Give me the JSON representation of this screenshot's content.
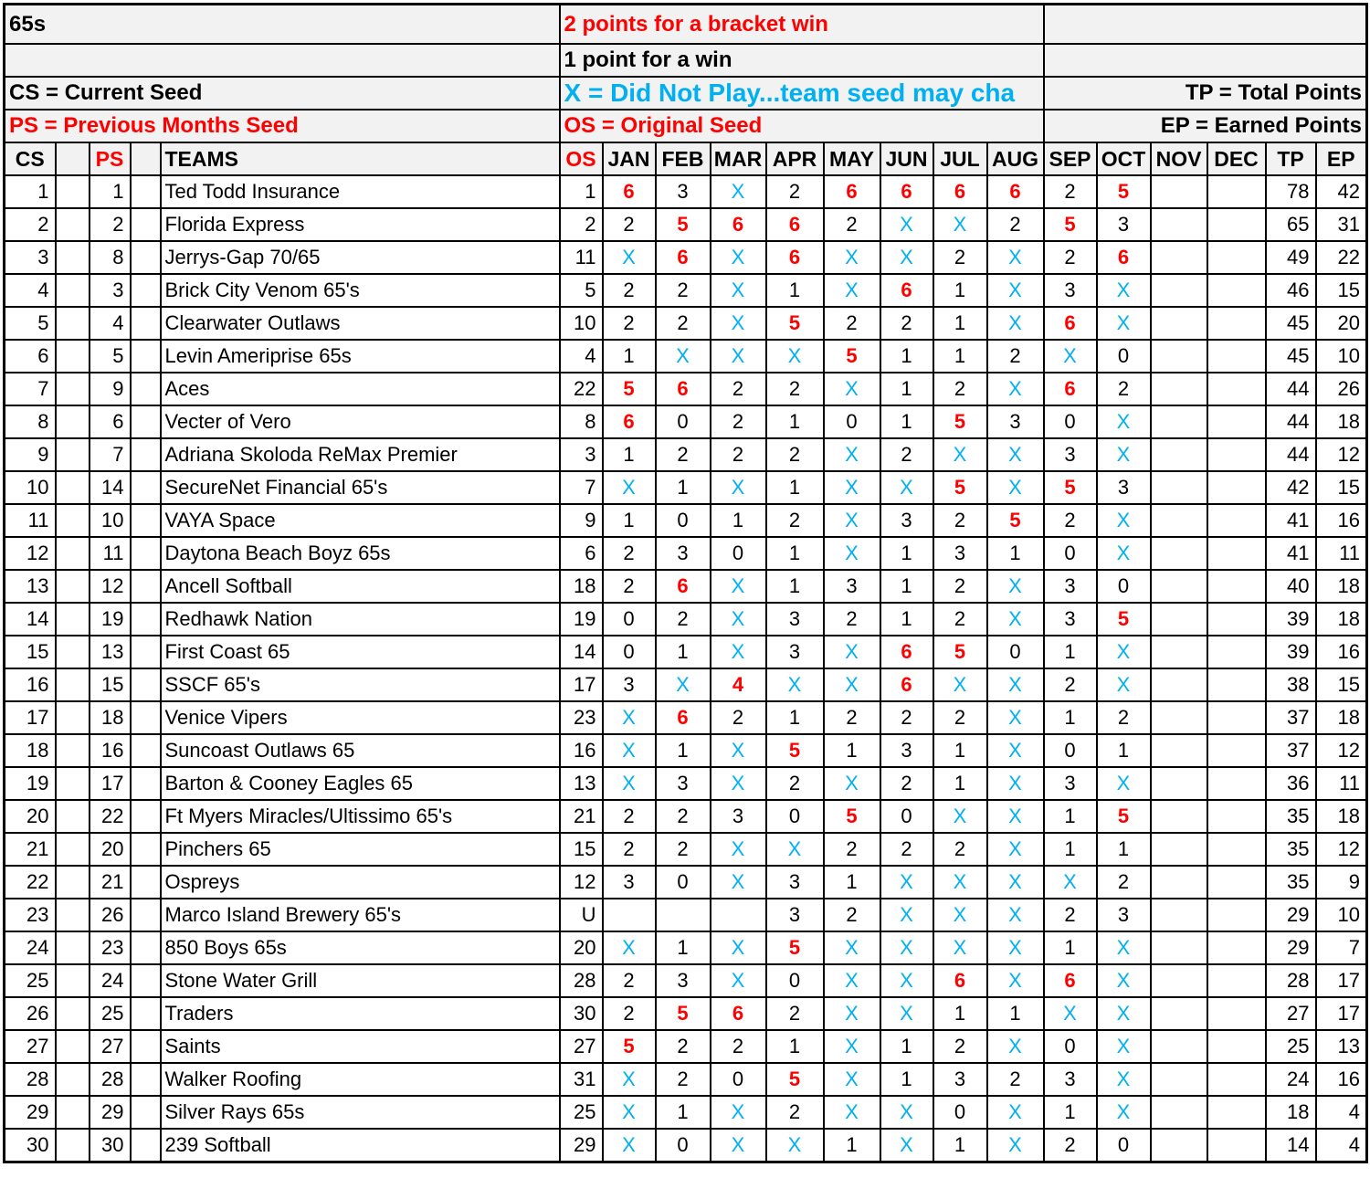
{
  "info": {
    "title": "65s",
    "bracket_rule": "2 points for a bracket win",
    "win_rule": "1 point for a win",
    "cs_legend": "CS = Current Seed",
    "x_legend": "X = Did Not Play...team seed may cha",
    "tp_legend": "TP = Total Points",
    "ps_legend": "PS = Previous Months Seed",
    "os_legend": "OS = Original Seed",
    "ep_legend": "EP = Earned Points"
  },
  "colors": {
    "highlight": "#ff0000",
    "did_not_play": "#00b0f0",
    "header_bg": "#f2f2f2"
  },
  "headers": {
    "cs": "CS",
    "ps": "PS",
    "teams": "TEAMS",
    "os": "OS",
    "months": [
      "JAN",
      "FEB",
      "MAR",
      "APR",
      "MAY",
      "JUN",
      "JUL",
      "AUG",
      "SEP",
      "OCT",
      "NOV",
      "DEC"
    ],
    "tp": "TP",
    "ep": "EP"
  },
  "rows": [
    {
      "cs": "1",
      "ps": "1",
      "team": "Ted Todd Insurance",
      "os": "1",
      "m": [
        "6",
        "3",
        "X",
        "2",
        "6",
        "6",
        "6",
        "6",
        "2",
        "5",
        "",
        ""
      ],
      "tp": "78",
      "ep": "42"
    },
    {
      "cs": "2",
      "ps": "2",
      "team": "Florida Express",
      "os": "2",
      "m": [
        "2",
        "5",
        "6",
        "6",
        "2",
        "X",
        "X",
        "2",
        "5",
        "3",
        "",
        ""
      ],
      "tp": "65",
      "ep": "31"
    },
    {
      "cs": "3",
      "ps": "8",
      "team": "Jerrys-Gap 70/65",
      "os": "11",
      "m": [
        "X",
        "6",
        "X",
        "6",
        "X",
        "X",
        "2",
        "X",
        "2",
        "6",
        "",
        ""
      ],
      "tp": "49",
      "ep": "22"
    },
    {
      "cs": "4",
      "ps": "3",
      "team": "Brick City Venom 65's",
      "os": "5",
      "m": [
        "2",
        "2",
        "X",
        "1",
        "X",
        "6",
        "1",
        "X",
        "3",
        "X",
        "",
        ""
      ],
      "tp": "46",
      "ep": "15"
    },
    {
      "cs": "5",
      "ps": "4",
      "team": "Clearwater Outlaws",
      "os": "10",
      "m": [
        "2",
        "2",
        "X",
        "5",
        "2",
        "2",
        "1",
        "X",
        "6",
        "X",
        "",
        ""
      ],
      "tp": "45",
      "ep": "20"
    },
    {
      "cs": "6",
      "ps": "5",
      "team": "Levin Ameriprise 65s",
      "os": "4",
      "m": [
        "1",
        "X",
        "X",
        "X",
        "5",
        "1",
        "1",
        "2",
        "X",
        "0",
        "",
        ""
      ],
      "tp": "45",
      "ep": "10"
    },
    {
      "cs": "7",
      "ps": "9",
      "team": "Aces",
      "os": "22",
      "m": [
        "5",
        "6",
        "2",
        "2",
        "X",
        "1",
        "2",
        "X",
        "6",
        "2",
        "",
        ""
      ],
      "tp": "44",
      "ep": "26"
    },
    {
      "cs": "8",
      "ps": "6",
      "team": "Vecter of Vero",
      "os": "8",
      "m": [
        "6",
        "0",
        "2",
        "1",
        "0",
        "1",
        "5",
        "3",
        "0",
        "X",
        "",
        ""
      ],
      "tp": "44",
      "ep": "18"
    },
    {
      "cs": "9",
      "ps": "7",
      "team": "Adriana Skoloda ReMax Premier",
      "os": "3",
      "m": [
        "1",
        "2",
        "2",
        "2",
        "X",
        "2",
        "X",
        "X",
        "3",
        "X",
        "",
        ""
      ],
      "tp": "44",
      "ep": "12"
    },
    {
      "cs": "10",
      "ps": "14",
      "team": "SecureNet Financial 65's",
      "os": "7",
      "m": [
        "X",
        "1",
        "X",
        "1",
        "X",
        "X",
        "5",
        "X",
        "5",
        "3",
        "",
        ""
      ],
      "tp": "42",
      "ep": "15"
    },
    {
      "cs": "11",
      "ps": "10",
      "team": "VAYA Space",
      "os": "9",
      "m": [
        "1",
        "0",
        "1",
        "2",
        "X",
        "3",
        "2",
        "5",
        "2",
        "X",
        "",
        ""
      ],
      "tp": "41",
      "ep": "16"
    },
    {
      "cs": "12",
      "ps": "11",
      "team": "Daytona Beach Boyz 65s",
      "os": "6",
      "m": [
        "2",
        "3",
        "0",
        "1",
        "X",
        "1",
        "3",
        "1",
        "0",
        "X",
        "",
        ""
      ],
      "tp": "41",
      "ep": "11"
    },
    {
      "cs": "13",
      "ps": "12",
      "team": "Ancell Softball",
      "os": "18",
      "m": [
        "2",
        "6",
        "X",
        "1",
        "3",
        "1",
        "2",
        "X",
        "3",
        "0",
        "",
        ""
      ],
      "tp": "40",
      "ep": "18"
    },
    {
      "cs": "14",
      "ps": "19",
      "team": "Redhawk Nation",
      "os": "19",
      "m": [
        "0",
        "2",
        "X",
        "3",
        "2",
        "1",
        "2",
        "X",
        "3",
        "5",
        "",
        ""
      ],
      "tp": "39",
      "ep": "18"
    },
    {
      "cs": "15",
      "ps": "13",
      "team": "First Coast 65",
      "os": "14",
      "m": [
        "0",
        "1",
        "X",
        "3",
        "X",
        "6",
        "5",
        "0",
        "1",
        "X",
        "",
        ""
      ],
      "tp": "39",
      "ep": "16"
    },
    {
      "cs": "16",
      "ps": "15",
      "team": "SSCF 65's",
      "os": "17",
      "m": [
        "3",
        "X",
        "4",
        "X",
        "X",
        "6",
        "X",
        "X",
        "2",
        "X",
        "",
        ""
      ],
      "tp": "38",
      "ep": "15"
    },
    {
      "cs": "17",
      "ps": "18",
      "team": "Venice Vipers",
      "os": "23",
      "m": [
        "X",
        "6",
        "2",
        "1",
        "2",
        "2",
        "2",
        "X",
        "1",
        "2",
        "",
        ""
      ],
      "tp": "37",
      "ep": "18"
    },
    {
      "cs": "18",
      "ps": "16",
      "team": "Suncoast Outlaws 65",
      "os": "16",
      "m": [
        "X",
        "1",
        "X",
        "5",
        "1",
        "3",
        "1",
        "X",
        "0",
        "1",
        "",
        ""
      ],
      "tp": "37",
      "ep": "12"
    },
    {
      "cs": "19",
      "ps": "17",
      "team": "Barton & Cooney Eagles 65",
      "os": "13",
      "m": [
        "X",
        "3",
        "X",
        "2",
        "X",
        "2",
        "1",
        "X",
        "3",
        "X",
        "",
        ""
      ],
      "tp": "36",
      "ep": "11"
    },
    {
      "cs": "20",
      "ps": "22",
      "team": "Ft Myers Miracles/Ultissimo 65's",
      "os": "21",
      "m": [
        "2",
        "2",
        "3",
        "0",
        "5",
        "0",
        "X",
        "X",
        "1",
        "5",
        "",
        ""
      ],
      "tp": "35",
      "ep": "18"
    },
    {
      "cs": "21",
      "ps": "20",
      "team": "Pinchers 65",
      "os": "15",
      "m": [
        "2",
        "2",
        "X",
        "X",
        "2",
        "2",
        "2",
        "X",
        "1",
        "1",
        "",
        ""
      ],
      "tp": "35",
      "ep": "12"
    },
    {
      "cs": "22",
      "ps": "21",
      "team": "Ospreys",
      "os": "12",
      "m": [
        "3",
        "0",
        "X",
        "3",
        "1",
        "X",
        "X",
        "X",
        "X",
        "2",
        "",
        ""
      ],
      "tp": "35",
      "ep": "9"
    },
    {
      "cs": "23",
      "ps": "26",
      "team": "Marco Island Brewery 65's",
      "os": "U",
      "m": [
        "",
        "",
        "",
        "3",
        "2",
        "X",
        "X",
        "X",
        "2",
        "3",
        "",
        ""
      ],
      "tp": "29",
      "ep": "10"
    },
    {
      "cs": "24",
      "ps": "23",
      "team": "850 Boys 65s",
      "os": "20",
      "m": [
        "X",
        "1",
        "X",
        "5",
        "X",
        "X",
        "X",
        "X",
        "1",
        "X",
        "",
        ""
      ],
      "tp": "29",
      "ep": "7"
    },
    {
      "cs": "25",
      "ps": "24",
      "team": "Stone Water Grill",
      "os": "28",
      "m": [
        "2",
        "3",
        "X",
        "0",
        "X",
        "X",
        "6",
        "X",
        "6",
        "X",
        "",
        ""
      ],
      "tp": "28",
      "ep": "17"
    },
    {
      "cs": "26",
      "ps": "25",
      "team": "Traders",
      "os": "30",
      "m": [
        "2",
        "5",
        "6",
        "2",
        "X",
        "X",
        "1",
        "1",
        "X",
        "X",
        "",
        ""
      ],
      "tp": "27",
      "ep": "17"
    },
    {
      "cs": "27",
      "ps": "27",
      "team": "Saints",
      "os": "27",
      "m": [
        "5",
        "2",
        "2",
        "1",
        "X",
        "1",
        "2",
        "X",
        "0",
        "X",
        "",
        ""
      ],
      "tp": "25",
      "ep": "13"
    },
    {
      "cs": "28",
      "ps": "28",
      "team": "Walker Roofing",
      "os": "31",
      "m": [
        "X",
        "2",
        "0",
        "5",
        "X",
        "1",
        "3",
        "2",
        "3",
        "X",
        "",
        ""
      ],
      "tp": "24",
      "ep": "16"
    },
    {
      "cs": "29",
      "ps": "29",
      "team": "Silver Rays 65s",
      "os": "25",
      "m": [
        "X",
        "1",
        "X",
        "2",
        "X",
        "X",
        "0",
        "X",
        "1",
        "X",
        "",
        ""
      ],
      "tp": "18",
      "ep": "4"
    },
    {
      "cs": "30",
      "ps": "30",
      "team": "239 Softball",
      "os": "29",
      "m": [
        "X",
        "0",
        "X",
        "X",
        "1",
        "X",
        "1",
        "X",
        "2",
        "0",
        "",
        ""
      ],
      "tp": "14",
      "ep": "4"
    }
  ]
}
